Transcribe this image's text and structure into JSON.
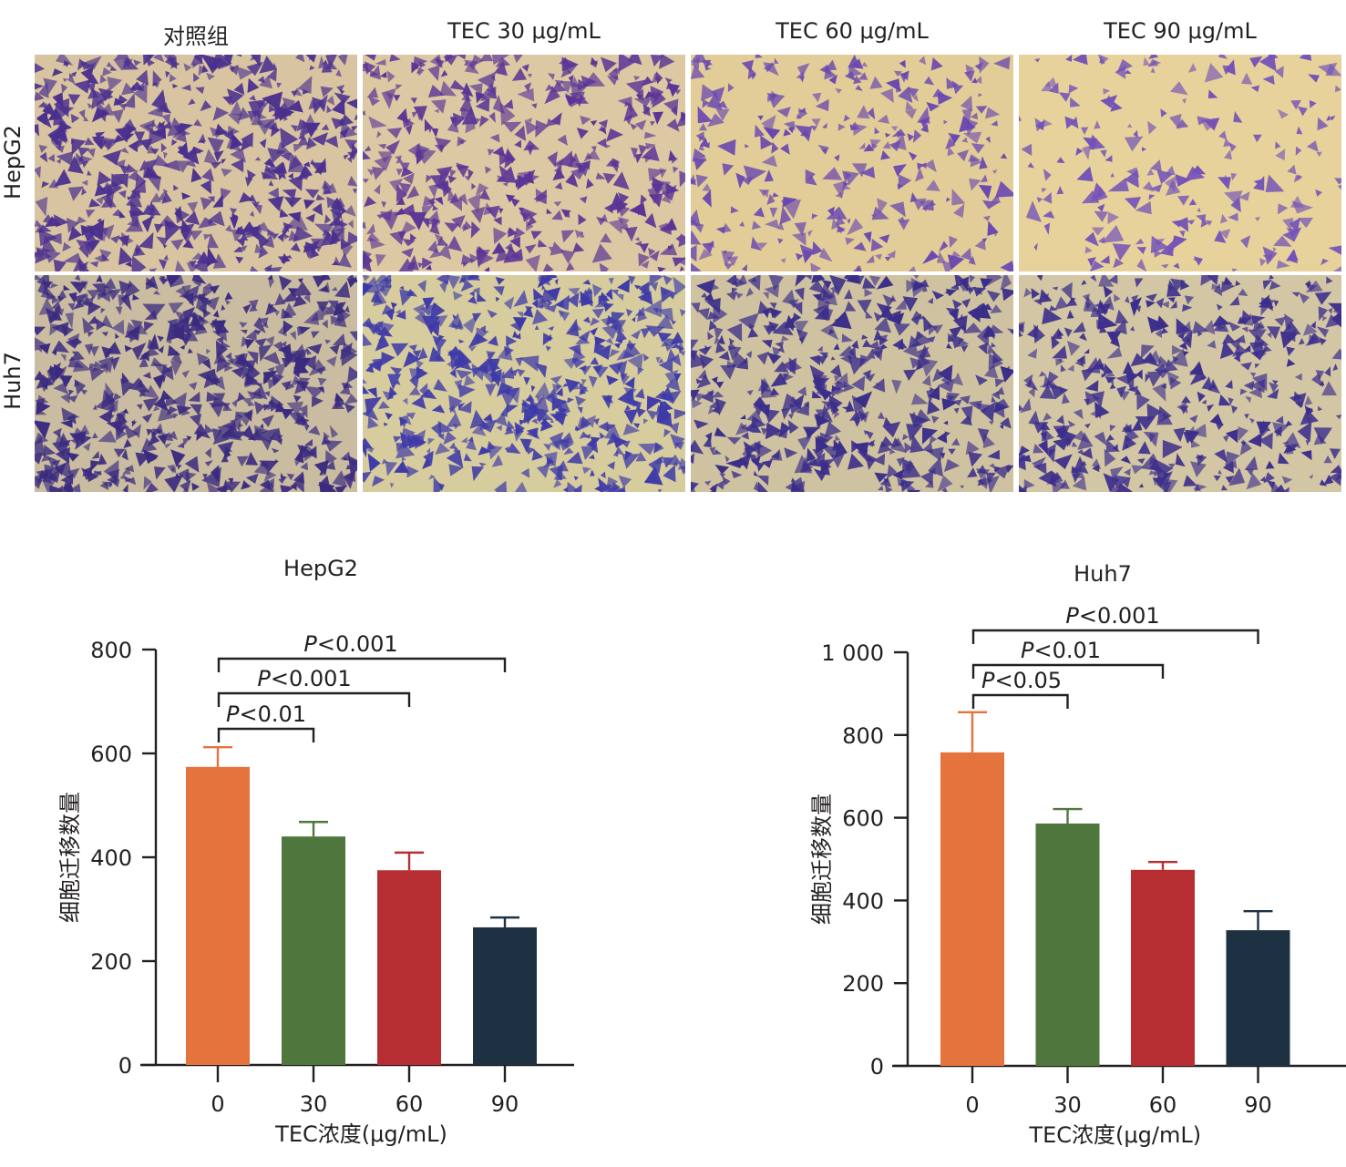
{
  "panel_a": {
    "column_titles": [
      "对照组",
      "TEC 30 μg/mL",
      "TEC 60 μg/mL",
      "TEC 90 μg/mL"
    ],
    "row_labels": [
      "HepG2",
      "Huh7"
    ],
    "micrographs": [
      {
        "row": "HepG2",
        "column": "对照组",
        "cell_density": 0.62,
        "stain_color": "#4a2f8f",
        "background_color": "#d8c4a0"
      },
      {
        "row": "HepG2",
        "column": "TEC 30 μg/mL",
        "cell_density": 0.48,
        "stain_color": "#5a3596",
        "background_color": "#dcc8a2"
      },
      {
        "row": "HepG2",
        "column": "TEC 60 μg/mL",
        "cell_density": 0.32,
        "stain_color": "#6a48b0",
        "background_color": "#e2cd98"
      },
      {
        "row": "HepG2",
        "column": "TEC 90 μg/mL",
        "cell_density": 0.22,
        "stain_color": "#7452b8",
        "background_color": "#e6d29a"
      },
      {
        "row": "Huh7",
        "column": "对照组",
        "cell_density": 0.68,
        "stain_color": "#3a2a80",
        "background_color": "#c9bca0"
      },
      {
        "row": "Huh7",
        "column": "TEC 30 μg/mL",
        "cell_density": 0.58,
        "stain_color": "#3e3aa8",
        "background_color": "#d6cc9e"
      },
      {
        "row": "Huh7",
        "column": "TEC 60 μg/mL",
        "cell_density": 0.55,
        "stain_color": "#3a2d8a",
        "background_color": "#cfc2a0"
      },
      {
        "row": "Huh7",
        "column": "TEC 90 μg/mL",
        "cell_density": 0.5,
        "stain_color": "#3c2e8c",
        "background_color": "#d2c6a4"
      }
    ]
  },
  "chart_data": [
    {
      "type": "bar",
      "title": "HepG2",
      "categories": [
        "0",
        "30",
        "60",
        "90"
      ],
      "values": [
        574,
        440,
        375,
        265
      ],
      "error_upper": [
        612,
        468,
        409,
        284
      ],
      "colors": [
        "#e5733d",
        "#4f773d",
        "#b72e32",
        "#1e3142"
      ],
      "xlabel": "TEC浓度(μg/mL)",
      "ylabel": "细胞迁移数量",
      "ylim": [
        0,
        800
      ],
      "yticks": [
        0,
        200,
        400,
        600,
        800
      ],
      "ytick_labels": [
        "0",
        "200",
        "400",
        "600",
        "800"
      ],
      "grid": false,
      "significance": [
        {
          "from": "0",
          "to": "30",
          "label_italic": "P",
          "label_rest": "<0.01",
          "level": 1
        },
        {
          "from": "0",
          "to": "60",
          "label_italic": "P",
          "label_rest": "<0.001",
          "level": 2
        },
        {
          "from": "0",
          "to": "90",
          "label_italic": "P",
          "label_rest": "<0.001",
          "level": 3
        }
      ]
    },
    {
      "type": "bar",
      "title": "Huh7",
      "categories": [
        "0",
        "30",
        "60",
        "90"
      ],
      "values": [
        758,
        586,
        474,
        328
      ],
      "error_upper": [
        855,
        621,
        493,
        374
      ],
      "colors": [
        "#e5733d",
        "#4f773d",
        "#b72e32",
        "#1e3142"
      ],
      "xlabel": "TEC浓度(μg/mL)",
      "ylabel": "细胞迁移数量",
      "ylim": [
        0,
        1000
      ],
      "yticks": [
        0,
        200,
        400,
        600,
        800,
        1000
      ],
      "ytick_labels": [
        "0",
        "200",
        "400",
        "600",
        "800",
        "1 000"
      ],
      "grid": false,
      "significance": [
        {
          "from": "0",
          "to": "30",
          "label_italic": "P",
          "label_rest": "<0.05",
          "level": 1
        },
        {
          "from": "0",
          "to": "60",
          "label_italic": "P",
          "label_rest": "<0.01",
          "level": 2
        },
        {
          "from": "0",
          "to": "90",
          "label_italic": "P",
          "label_rest": "<0.001",
          "level": 3
        }
      ]
    }
  ]
}
